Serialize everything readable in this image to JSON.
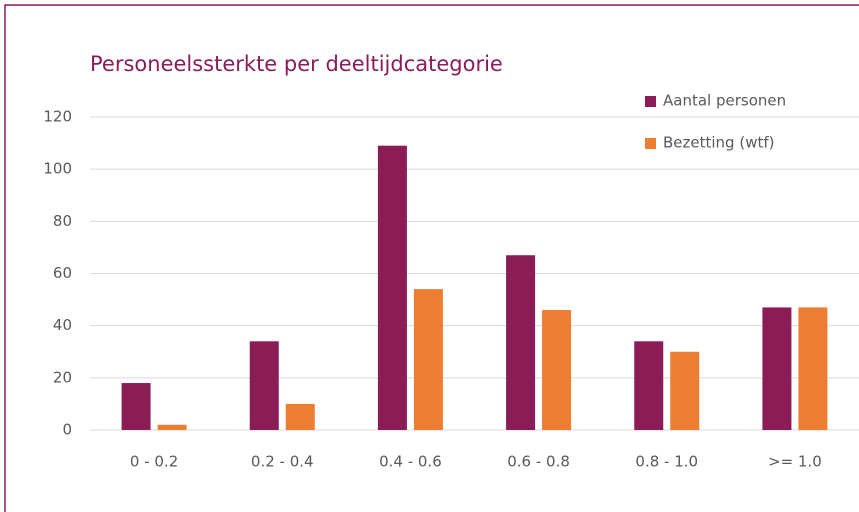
{
  "chart_data": {
    "type": "bar",
    "title": "Personeelssterkte per deeltijdcategorie",
    "categories": [
      "0 - 0.2",
      "0.2 - 0.4",
      "0.4 - 0.6",
      "0.6 - 0.8",
      "0.8 - 1.0",
      ">= 1.0"
    ],
    "series": [
      {
        "name": "Aantal personen",
        "color": "#8b1c56",
        "values": [
          18,
          34,
          109,
          67,
          34,
          47
        ]
      },
      {
        "name": "Bezetting (wtf)",
        "color": "#ed7d31",
        "values": [
          2,
          10,
          54,
          46,
          30,
          47
        ]
      }
    ],
    "ylim": [
      0,
      120
    ],
    "yticks": [
      0,
      20,
      40,
      60,
      80,
      100,
      120
    ],
    "grid": true,
    "legend": "top-right"
  }
}
